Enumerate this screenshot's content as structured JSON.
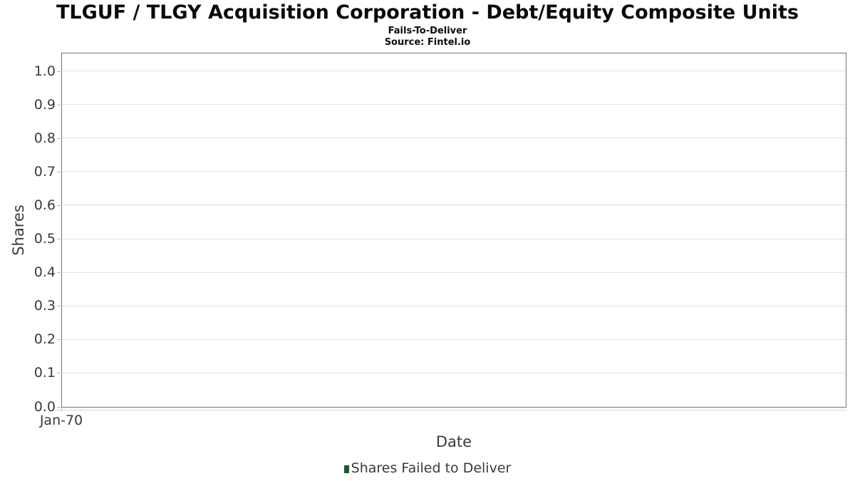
{
  "title": "TLGUF / TLGY Acquisition Corporation - Debt/Equity Composite Units",
  "subtitle": "Fails-To-Deliver",
  "source": "Source: Fintel.io",
  "chart_data": {
    "type": "bar",
    "title": "TLGUF / TLGY Acquisition Corporation - Debt/Equity Composite Units",
    "subtitle": "Fails-To-Deliver",
    "source": "Source: Fintel.io",
    "xlabel": "Date",
    "ylabel": "Shares",
    "ylim": [
      0.0,
      1.05
    ],
    "yticks": [
      "1.0",
      "0.9",
      "0.8",
      "0.7",
      "0.6",
      "0.5",
      "0.4",
      "0.3",
      "0.2",
      "0.1",
      "0.0"
    ],
    "xticks": [
      "Jan-70"
    ],
    "grid": "horizontal",
    "legend_position": "bottom",
    "legend": [
      {
        "label": "Shares Failed to Deliver",
        "color": "#1f5631"
      }
    ],
    "series": [
      {
        "name": "Shares Failed to Deliver",
        "x": [],
        "values": []
      }
    ]
  },
  "colors": {
    "legend_marker": "#1f5631",
    "axis_border": "#757575",
    "gridline": "#e3e3e3",
    "tick_mark": "#b5b5b5",
    "tick_text": "#3a3a3a",
    "title_text": "#0a0a0a"
  }
}
